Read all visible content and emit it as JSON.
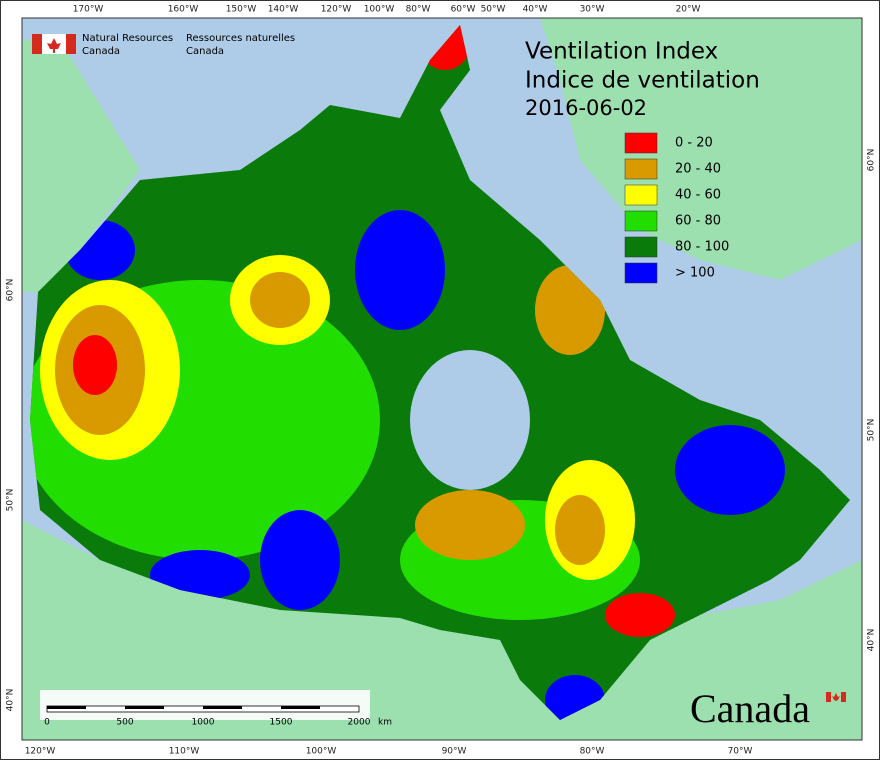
{
  "header": {
    "agency_en": [
      "Natural Resources",
      "Canada"
    ],
    "agency_fr": [
      "Ressources naturelles",
      "Canada"
    ]
  },
  "title": [
    "Ventilation Index",
    "Indice de ventilation",
    "2016-06-02"
  ],
  "legend": [
    {
      "label": "0 - 20",
      "color": "#ff0000"
    },
    {
      "label": "20 - 40",
      "color": "#d99a00"
    },
    {
      "label": "40 - 60",
      "color": "#ffff00"
    },
    {
      "label": "60 - 80",
      "color": "#22dd00"
    },
    {
      "label": "80 - 100",
      "color": "#0a7a0a"
    },
    {
      "label": "> 100",
      "color": "#0000ff"
    }
  ],
  "graticule": {
    "top": [
      "170°W",
      "160°W",
      "150°W",
      "140°W",
      "120°W",
      "100°W",
      "80°W",
      "60°W",
      "50°W",
      "40°W",
      "30°W",
      "20°W"
    ],
    "bottom": [
      "120°W",
      "110°W",
      "100°W",
      "90°W",
      "80°W",
      "70°W"
    ],
    "left": [
      "60°N",
      "50°N",
      "40°N"
    ],
    "right": [
      "60°N",
      "50°N",
      "40°N"
    ]
  },
  "scale_bar": {
    "labels": [
      "0",
      "500",
      "1000",
      "1500",
      "2000"
    ],
    "unit": "km"
  },
  "wordmark": "Canada"
}
